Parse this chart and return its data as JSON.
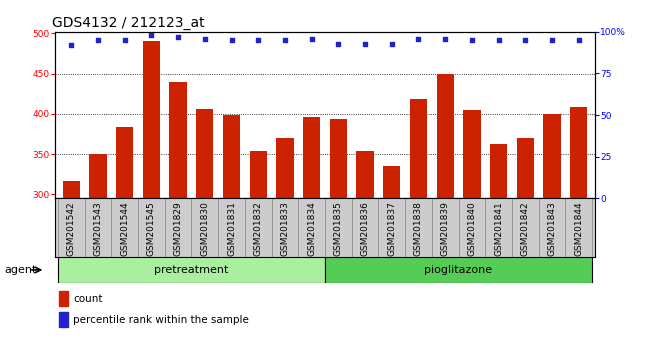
{
  "title": "GDS4132 / 212123_at",
  "categories": [
    "GSM201542",
    "GSM201543",
    "GSM201544",
    "GSM201545",
    "GSM201829",
    "GSM201830",
    "GSM201831",
    "GSM201832",
    "GSM201833",
    "GSM201834",
    "GSM201835",
    "GSM201836",
    "GSM201837",
    "GSM201838",
    "GSM201839",
    "GSM201840",
    "GSM201841",
    "GSM201842",
    "GSM201843",
    "GSM201844"
  ],
  "bar_values": [
    316,
    350,
    384,
    491,
    440,
    406,
    399,
    354,
    370,
    396,
    393,
    354,
    335,
    418,
    450,
    405,
    363,
    370,
    400,
    408
  ],
  "percentile_values": [
    92,
    95,
    95,
    98,
    97,
    96,
    95,
    95,
    95,
    96,
    93,
    93,
    93,
    96,
    96,
    95,
    95,
    95,
    95,
    95
  ],
  "group1_label": "pretreatment",
  "group1_count": 10,
  "group2_label": "pioglitazone",
  "group2_count": 10,
  "agent_label": "agent",
  "bar_color": "#cc2200",
  "percentile_color": "#2222cc",
  "group1_color": "#aaeea0",
  "group2_color": "#55cc55",
  "xtick_bg": "#cccccc",
  "plot_bg": "#ffffff",
  "ylim_left": [
    295,
    502
  ],
  "ylim_right": [
    0,
    100
  ],
  "yticks_left": [
    300,
    350,
    400,
    450,
    500
  ],
  "yticks_right": [
    0,
    25,
    50,
    75,
    100
  ],
  "legend_count_label": "count",
  "legend_pct_label": "percentile rank within the sample",
  "title_fontsize": 10,
  "tick_fontsize": 6.5,
  "bar_width": 0.65
}
